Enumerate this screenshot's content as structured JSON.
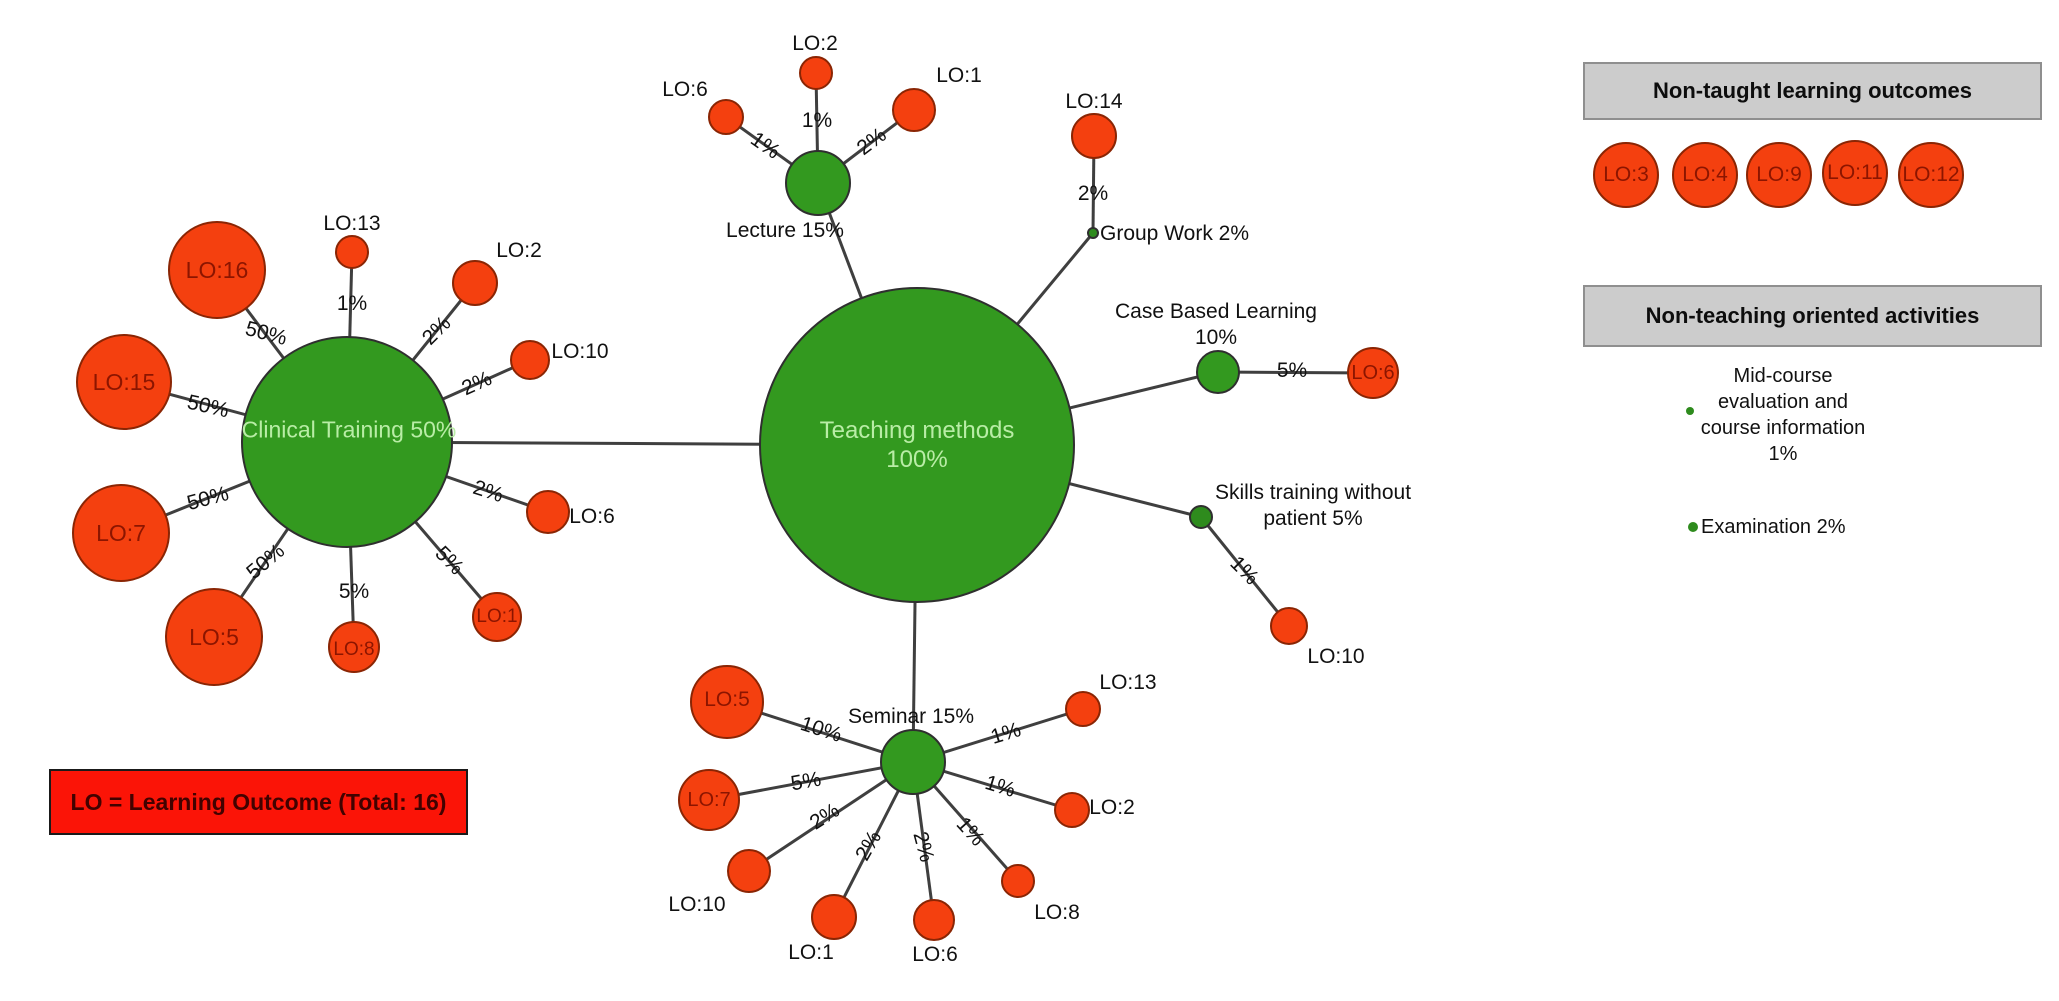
{
  "colors": {
    "background": "#ffffff",
    "method_green": "#33991f",
    "method_green_dark": "#2e8b1d",
    "method_text_light": "#b9eda6",
    "outcome_red": "#f4400f",
    "outcome_text_dark": "#8c1500",
    "outcome_stroke": "#8a2504",
    "node_stroke": "#2f2f2f",
    "line": "#3f3f3f",
    "label_black": "#111111",
    "legend_header_bg": "#cccccc",
    "legend_header_border": "#8f8f8f",
    "note_box_bg": "#fb1407",
    "note_box_text": "#420200"
  },
  "note_box": {
    "label": "LO = Learning Outcome (Total: 16)"
  },
  "legend": {
    "non_taught": {
      "title": "Non-taught learning outcomes",
      "items": [
        {
          "label": "LO:3"
        },
        {
          "label": "LO:4"
        },
        {
          "label": "LO:9"
        },
        {
          "label": "LO:11"
        },
        {
          "label": "LO:12"
        }
      ]
    },
    "non_teaching": {
      "title": "Non-teaching oriented activities",
      "items": [
        {
          "label": "Mid-course\nevaluation and\ncourse information\n1%"
        },
        {
          "label": "Examination 2%"
        }
      ]
    }
  },
  "graph": {
    "nodes": [
      {
        "id": "teaching",
        "kind": "method",
        "label": "Teaching methods\n100%"
      },
      {
        "id": "clinical",
        "kind": "method",
        "label": "Clinical Training 50%"
      },
      {
        "id": "lecture",
        "kind": "method",
        "label": "Lecture 15%"
      },
      {
        "id": "seminar",
        "kind": "method",
        "label": "Seminar 15%"
      },
      {
        "id": "groupwork",
        "kind": "dot",
        "label": "Group Work 2%"
      },
      {
        "id": "cbl",
        "kind": "method",
        "label": "Case Based Learning\n10%"
      },
      {
        "id": "skills",
        "kind": "dot",
        "label": "Skills training without\npatient 5%"
      },
      {
        "id": "lec-lo6",
        "kind": "outcome",
        "label": "LO:6"
      },
      {
        "id": "lec-lo2",
        "kind": "outcome",
        "label": "LO:2"
      },
      {
        "id": "lec-lo1",
        "kind": "outcome",
        "label": "LO:1"
      },
      {
        "id": "gw-lo14",
        "kind": "outcome",
        "label": "LO:14"
      },
      {
        "id": "cbl-lo6",
        "kind": "outcome",
        "label": "LO:6"
      },
      {
        "id": "skills-lo10",
        "kind": "outcome",
        "label": "LO:10"
      },
      {
        "id": "clin-lo16",
        "kind": "outcome",
        "label": "LO:16"
      },
      {
        "id": "clin-lo13",
        "kind": "outcome",
        "label": "LO:13"
      },
      {
        "id": "clin-lo2",
        "kind": "outcome",
        "label": "LO:2"
      },
      {
        "id": "clin-lo10",
        "kind": "outcome",
        "label": "LO:10"
      },
      {
        "id": "clin-lo15",
        "kind": "outcome",
        "label": "LO:15"
      },
      {
        "id": "clin-lo7",
        "kind": "outcome",
        "label": "LO:7"
      },
      {
        "id": "clin-lo5",
        "kind": "outcome",
        "label": "LO:5"
      },
      {
        "id": "clin-lo8",
        "kind": "outcome",
        "label": "LO:8"
      },
      {
        "id": "clin-lo1",
        "kind": "outcome",
        "label": "LO:1"
      },
      {
        "id": "clin-lo6",
        "kind": "outcome",
        "label": "LO:6"
      },
      {
        "id": "sem-lo5",
        "kind": "outcome",
        "label": "LO:5"
      },
      {
        "id": "sem-lo7",
        "kind": "outcome",
        "label": "LO:7"
      },
      {
        "id": "sem-lo10",
        "kind": "outcome",
        "label": "LO:10"
      },
      {
        "id": "sem-lo1",
        "kind": "outcome",
        "label": "LO:1"
      },
      {
        "id": "sem-lo6",
        "kind": "outcome",
        "label": "LO:6"
      },
      {
        "id": "sem-lo8",
        "kind": "outcome",
        "label": "LO:8"
      },
      {
        "id": "sem-lo2",
        "kind": "outcome",
        "label": "LO:2"
      },
      {
        "id": "sem-lo13",
        "kind": "outcome",
        "label": "LO:13"
      }
    ],
    "edges": [
      {
        "from": "clinical",
        "to": "teaching",
        "label": ""
      },
      {
        "from": "teaching",
        "to": "lecture",
        "label": ""
      },
      {
        "from": "teaching",
        "to": "seminar",
        "label": ""
      },
      {
        "from": "teaching",
        "to": "groupwork",
        "label": ""
      },
      {
        "from": "teaching",
        "to": "cbl",
        "label": ""
      },
      {
        "from": "teaching",
        "to": "skills",
        "label": ""
      },
      {
        "from": "lecture",
        "to": "lec-lo6",
        "label": "1%"
      },
      {
        "from": "lecture",
        "to": "lec-lo2",
        "label": "1%"
      },
      {
        "from": "lecture",
        "to": "lec-lo1",
        "label": "2%"
      },
      {
        "from": "groupwork",
        "to": "gw-lo14",
        "label": "2%"
      },
      {
        "from": "cbl",
        "to": "cbl-lo6",
        "label": "5%"
      },
      {
        "from": "skills",
        "to": "skills-lo10",
        "label": "1%"
      },
      {
        "from": "clinical",
        "to": "clin-lo16",
        "label": "50%"
      },
      {
        "from": "clinical",
        "to": "clin-lo13",
        "label": "1%"
      },
      {
        "from": "clinical",
        "to": "clin-lo2",
        "label": "2%"
      },
      {
        "from": "clinical",
        "to": "clin-lo10",
        "label": "2%"
      },
      {
        "from": "clinical",
        "to": "clin-lo15",
        "label": "50%"
      },
      {
        "from": "clinical",
        "to": "clin-lo7",
        "label": "50%"
      },
      {
        "from": "clinical",
        "to": "clin-lo5",
        "label": "50%"
      },
      {
        "from": "clinical",
        "to": "clin-lo8",
        "label": "5%"
      },
      {
        "from": "clinical",
        "to": "clin-lo1",
        "label": "5%"
      },
      {
        "from": "clinical",
        "to": "clin-lo6",
        "label": "2%"
      },
      {
        "from": "seminar",
        "to": "sem-lo5",
        "label": "10%"
      },
      {
        "from": "seminar",
        "to": "sem-lo7",
        "label": "5%"
      },
      {
        "from": "seminar",
        "to": "sem-lo10",
        "label": "2%"
      },
      {
        "from": "seminar",
        "to": "sem-lo1",
        "label": "2%"
      },
      {
        "from": "seminar",
        "to": "sem-lo6",
        "label": "2%"
      },
      {
        "from": "seminar",
        "to": "sem-lo8",
        "label": "1%"
      },
      {
        "from": "seminar",
        "to": "sem-lo2",
        "label": "1%"
      },
      {
        "from": "seminar",
        "to": "sem-lo13",
        "label": "1%"
      }
    ]
  }
}
